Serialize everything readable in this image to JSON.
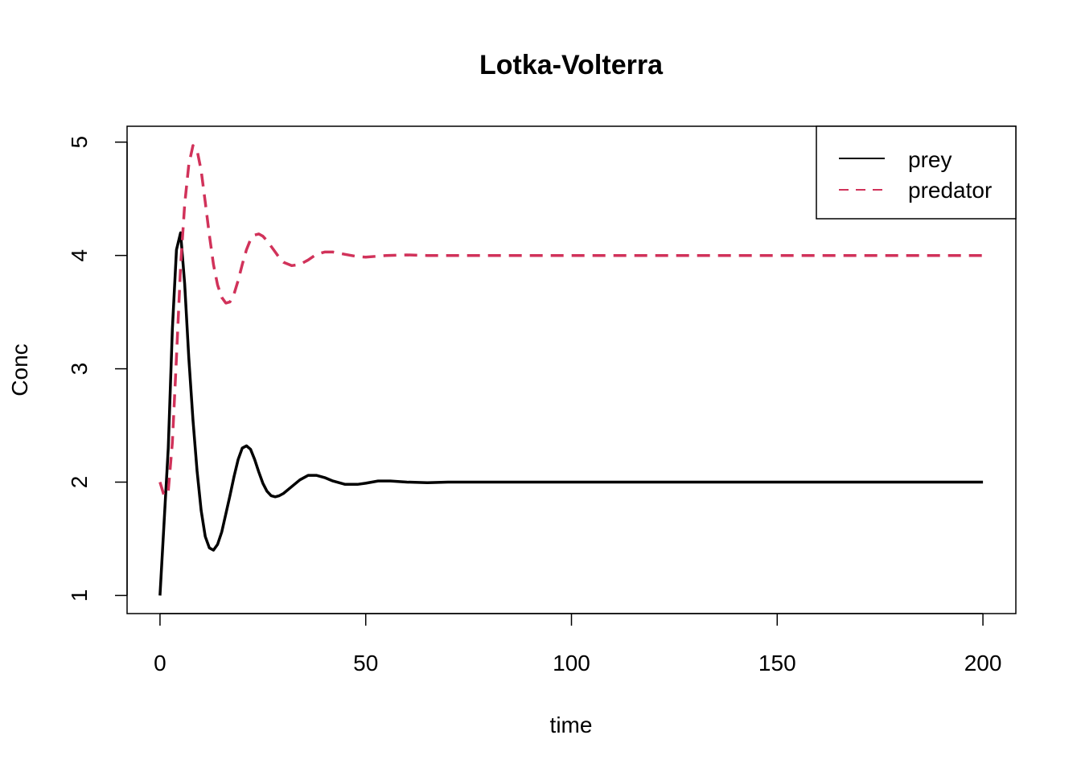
{
  "chart_data": {
    "type": "line",
    "title": "Lotka-Volterra",
    "xlabel": "time",
    "ylabel": "Conc",
    "xlim": [
      -8,
      208
    ],
    "ylim": [
      0.84,
      5.14
    ],
    "xticks": [
      0,
      50,
      100,
      150,
      200
    ],
    "yticks": [
      1,
      2,
      3,
      4,
      5
    ],
    "grid": false,
    "legend_position": "top-right",
    "series": [
      {
        "name": "prey",
        "color": "#000000",
        "style": "solid",
        "x": [
          0,
          2,
          3,
          4,
          5,
          6,
          7,
          8,
          9,
          10,
          11,
          12,
          13,
          14,
          15,
          16,
          17,
          18,
          19,
          20,
          21,
          22,
          23,
          24,
          25,
          26,
          27,
          28,
          29,
          30,
          32,
          34,
          36,
          38,
          40,
          42,
          45,
          48,
          50,
          53,
          56,
          60,
          65,
          70,
          80,
          100,
          150,
          200
        ],
        "y": [
          1.0,
          2.3,
          3.35,
          4.05,
          4.2,
          3.75,
          3.1,
          2.55,
          2.1,
          1.75,
          1.52,
          1.42,
          1.4,
          1.45,
          1.56,
          1.72,
          1.88,
          2.05,
          2.2,
          2.3,
          2.32,
          2.29,
          2.2,
          2.09,
          1.99,
          1.92,
          1.88,
          1.87,
          1.88,
          1.9,
          1.96,
          2.02,
          2.06,
          2.06,
          2.04,
          2.01,
          1.98,
          1.98,
          1.99,
          2.01,
          2.01,
          2.0,
          1.995,
          2.0,
          2.0,
          2.0,
          2.0,
          2.0
        ]
      },
      {
        "name": "predator",
        "color": "#d1325a",
        "style": "dashed",
        "x": [
          0,
          1,
          2,
          3,
          4,
          5,
          6,
          7,
          8,
          9,
          10,
          11,
          12,
          13,
          14,
          15,
          16,
          17,
          18,
          19,
          20,
          21,
          22,
          23,
          24,
          25,
          26,
          27,
          28,
          29,
          30,
          32,
          34,
          36,
          38,
          40,
          42,
          45,
          48,
          50,
          55,
          60,
          65,
          70,
          80,
          100,
          150,
          200
        ],
        "y": [
          2.0,
          1.88,
          1.92,
          2.35,
          3.1,
          3.9,
          4.45,
          4.8,
          4.97,
          4.93,
          4.75,
          4.47,
          4.18,
          3.92,
          3.74,
          3.63,
          3.58,
          3.59,
          3.66,
          3.78,
          3.92,
          4.05,
          4.14,
          4.18,
          4.19,
          4.17,
          4.13,
          4.08,
          4.03,
          3.98,
          3.94,
          3.91,
          3.92,
          3.96,
          4.01,
          4.03,
          4.03,
          4.01,
          3.99,
          3.985,
          4.0,
          4.005,
          4.0,
          4.0,
          4.0,
          4.0,
          4.0,
          4.0
        ]
      }
    ]
  }
}
